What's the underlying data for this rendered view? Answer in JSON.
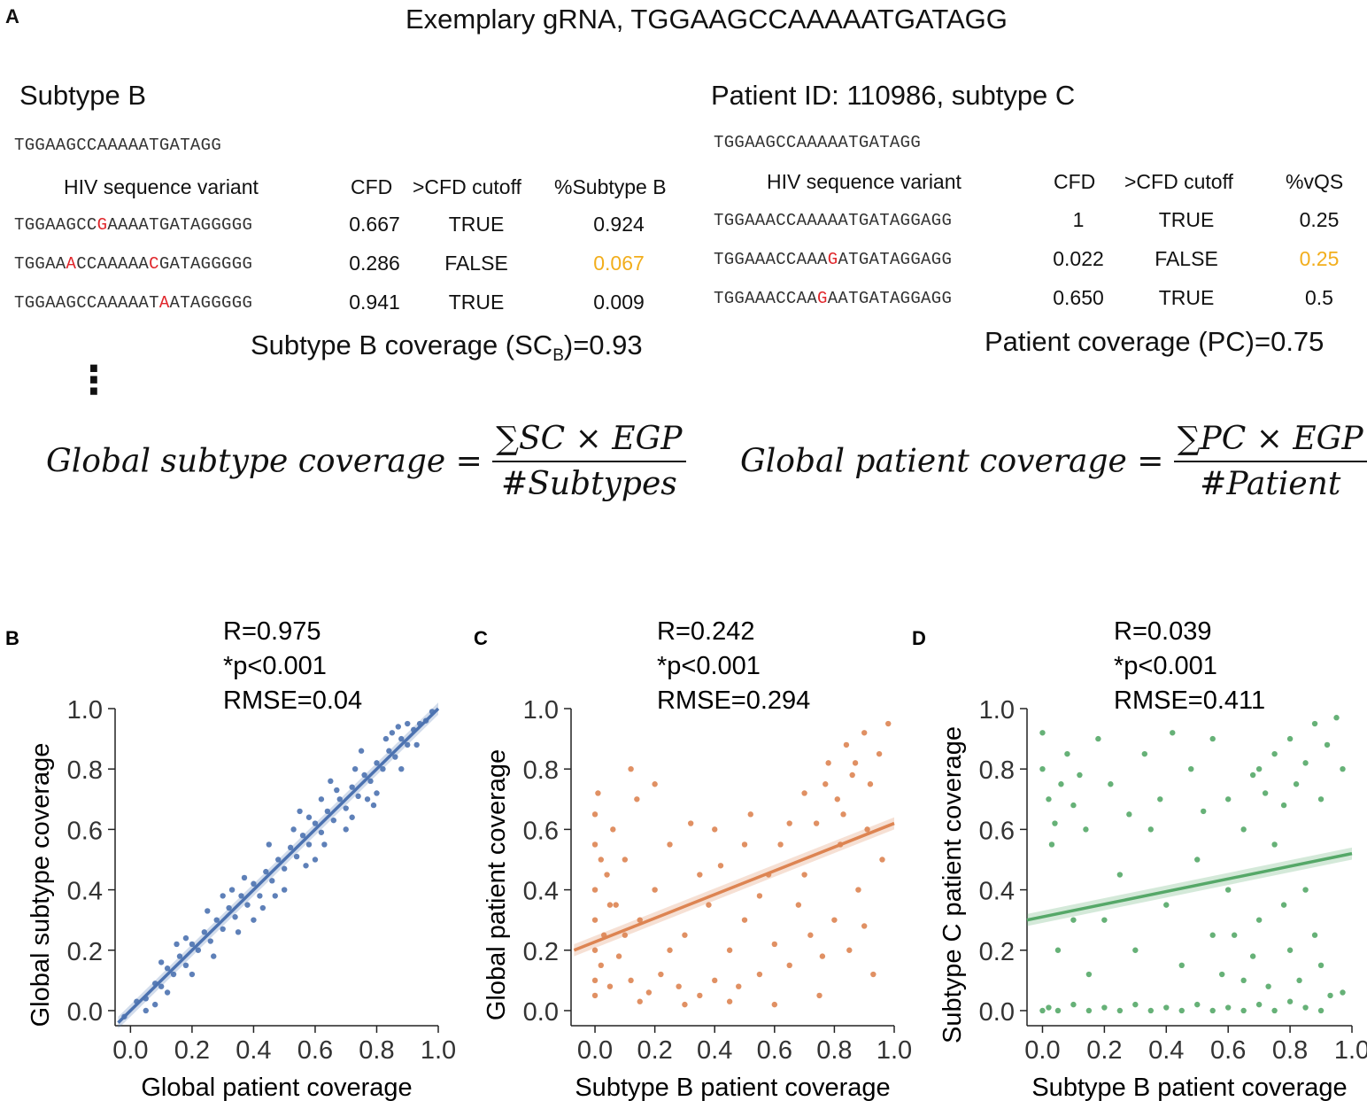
{
  "panelA": {
    "letter": "A",
    "title": "Exemplary gRNA, TGGAAGCCAAAAATGATAGG",
    "subtypeB": {
      "heading": "Subtype B",
      "ref_seq": "TGGAAGCCAAAAATGATAGG",
      "headers": [
        "HIV sequence variant",
        "CFD",
        ">CFD cutoff",
        "%Subtype B"
      ],
      "rows": [
        {
          "seq": [
            "TGGAAGCC",
            "G",
            "AAAATGATAGGGGG"
          ],
          "cfd": "0.667",
          "cutoff": "TRUE",
          "pct": "0.924"
        },
        {
          "seq": [
            "TGGAA",
            "A",
            "CCAAAAA",
            "C",
            "GATAGGGGG"
          ],
          "cfd": "0.286",
          "cutoff": "FALSE",
          "pct": "0.067"
        },
        {
          "seq": [
            "TGGAAGCCAAAAAT",
            "A",
            "ATAGGGGG"
          ],
          "cfd": "0.941",
          "cutoff": "TRUE",
          "pct": "0.009"
        }
      ],
      "coverage_pre": "Subtype B coverage (SC",
      "coverage_sub": "B",
      "coverage_post": ")=0.93"
    },
    "patient": {
      "heading": "Patient ID: 110986, subtype C",
      "ref_seq": "TGGAAGCCAAAAATGATAGG",
      "headers": [
        "HIV sequence variant",
        "CFD",
        ">CFD cutoff",
        "%vQS"
      ],
      "rows": [
        {
          "seq": [
            "TGGAAACCAAAAATGATAGGAGG"
          ],
          "cfd": "1",
          "cutoff": "TRUE",
          "pct": "0.25"
        },
        {
          "seq": [
            "TGGAAACCAAA",
            "G",
            "ATGATAGGAGG"
          ],
          "cfd": "0.022",
          "cutoff": "FALSE",
          "pct": "0.25"
        },
        {
          "seq": [
            "TGGAAACCAA",
            "G",
            "AATGATAGGAGG"
          ],
          "cfd": "0.650",
          "cutoff": "TRUE",
          "pct": "0.5"
        }
      ],
      "coverage": "Patient coverage (PC)=0.75"
    },
    "formula_left": {
      "lhs": "Global subtype coverage =",
      "num": "∑SC × EGP",
      "den": "#Subtypes"
    },
    "formula_right": {
      "lhs": "Global patient coverage =",
      "num": "∑PC × EGP",
      "den": "#Patient"
    },
    "ellipsis": "⋮"
  },
  "colors": {
    "blue": "#4c72b0",
    "orange": "#dd8452",
    "green": "#55a868",
    "mutation": "#e0262b",
    "highlight": "#f2ae1c"
  },
  "chart_data": [
    {
      "panel": "B",
      "type": "scatter",
      "color": "#4c72b0",
      "stats": [
        "R=0.975",
        "*p<0.001",
        "RMSE=0.04"
      ],
      "xlabel": "Global patient coverage",
      "ylabel": "Global subtype coverage",
      "xlim": [
        -0.05,
        1.0
      ],
      "ylim": [
        -0.05,
        1.0
      ],
      "xticks": [
        "0.0",
        "0.2",
        "0.4",
        "0.6",
        "0.8",
        "1.0"
      ],
      "yticks": [
        "0.0",
        "0.2",
        "0.4",
        "0.6",
        "0.8",
        "1.0"
      ],
      "fit": {
        "x": [
          -0.04,
          1.0
        ],
        "y": [
          -0.04,
          1.0
        ]
      },
      "points": [
        [
          -0.02,
          -0.02
        ],
        [
          0.02,
          0.03
        ],
        [
          0.05,
          0.04
        ],
        [
          0.08,
          0.09
        ],
        [
          0.1,
          0.08
        ],
        [
          0.12,
          0.14
        ],
        [
          0.14,
          0.12
        ],
        [
          0.16,
          0.18
        ],
        [
          0.18,
          0.15
        ],
        [
          0.2,
          0.22
        ],
        [
          0.22,
          0.2
        ],
        [
          0.24,
          0.26
        ],
        [
          0.26,
          0.23
        ],
        [
          0.28,
          0.3
        ],
        [
          0.3,
          0.27
        ],
        [
          0.32,
          0.34
        ],
        [
          0.34,
          0.31
        ],
        [
          0.36,
          0.38
        ],
        [
          0.38,
          0.35
        ],
        [
          0.4,
          0.42
        ],
        [
          0.42,
          0.38
        ],
        [
          0.44,
          0.46
        ],
        [
          0.46,
          0.43
        ],
        [
          0.48,
          0.5
        ],
        [
          0.5,
          0.47
        ],
        [
          0.52,
          0.54
        ],
        [
          0.54,
          0.51
        ],
        [
          0.56,
          0.58
        ],
        [
          0.58,
          0.55
        ],
        [
          0.6,
          0.62
        ],
        [
          0.62,
          0.59
        ],
        [
          0.64,
          0.66
        ],
        [
          0.66,
          0.63
        ],
        [
          0.68,
          0.7
        ],
        [
          0.7,
          0.67
        ],
        [
          0.72,
          0.74
        ],
        [
          0.74,
          0.71
        ],
        [
          0.76,
          0.78
        ],
        [
          0.78,
          0.76
        ],
        [
          0.8,
          0.82
        ],
        [
          0.82,
          0.8
        ],
        [
          0.84,
          0.86
        ],
        [
          0.86,
          0.84
        ],
        [
          0.88,
          0.9
        ],
        [
          0.9,
          0.88
        ],
        [
          0.92,
          0.93
        ],
        [
          0.94,
          0.95
        ],
        [
          0.96,
          0.96
        ],
        [
          0.98,
          0.99
        ],
        [
          0.1,
          0.16
        ],
        [
          0.2,
          0.12
        ],
        [
          0.3,
          0.38
        ],
        [
          0.35,
          0.26
        ],
        [
          0.45,
          0.55
        ],
        [
          0.5,
          0.4
        ],
        [
          0.55,
          0.66
        ],
        [
          0.6,
          0.5
        ],
        [
          0.65,
          0.76
        ],
        [
          0.7,
          0.6
        ],
        [
          0.75,
          0.86
        ],
        [
          0.8,
          0.72
        ],
        [
          0.85,
          0.92
        ],
        [
          0.88,
          0.8
        ],
        [
          0.4,
          0.3
        ],
        [
          0.25,
          0.33
        ],
        [
          0.15,
          0.22
        ],
        [
          0.62,
          0.7
        ],
        [
          0.72,
          0.64
        ],
        [
          0.9,
          0.95
        ],
        [
          0.05,
          0.0
        ],
        [
          0.08,
          0.02
        ],
        [
          0.33,
          0.4
        ],
        [
          0.43,
          0.34
        ],
        [
          0.53,
          0.6
        ],
        [
          0.57,
          0.48
        ],
        [
          0.67,
          0.73
        ],
        [
          0.77,
          0.7
        ],
        [
          0.83,
          0.9
        ],
        [
          0.93,
          0.88
        ],
        [
          0.12,
          0.06
        ],
        [
          0.18,
          0.24
        ],
        [
          0.27,
          0.18
        ],
        [
          0.37,
          0.44
        ],
        [
          0.47,
          0.38
        ],
        [
          0.58,
          0.64
        ],
        [
          0.63,
          0.55
        ],
        [
          0.73,
          0.8
        ],
        [
          0.79,
          0.68
        ],
        [
          0.87,
          0.94
        ]
      ]
    },
    {
      "panel": "C",
      "type": "scatter",
      "color": "#dd8452",
      "stats": [
        "R=0.242",
        "*p<0.001",
        "RMSE=0.294"
      ],
      "xlabel": "Subtype B patient coverage",
      "ylabel": "Global patient coverage",
      "xlim": [
        -0.08,
        1.0
      ],
      "ylim": [
        -0.05,
        1.0
      ],
      "xticks": [
        "0.0",
        "0.2",
        "0.4",
        "0.6",
        "0.8",
        "1.0"
      ],
      "yticks": [
        "0.0",
        "0.2",
        "0.4",
        "0.6",
        "0.8",
        "1.0"
      ],
      "fit": {
        "x": [
          -0.07,
          1.0
        ],
        "y": [
          0.2,
          0.62
        ]
      },
      "points": [
        [
          0.0,
          0.05
        ],
        [
          0.0,
          0.1
        ],
        [
          0.0,
          0.2
        ],
        [
          0.0,
          0.3
        ],
        [
          0.0,
          0.4
        ],
        [
          0.0,
          0.55
        ],
        [
          0.0,
          0.65
        ],
        [
          0.01,
          0.72
        ],
        [
          0.02,
          0.15
        ],
        [
          0.03,
          0.25
        ],
        [
          0.04,
          0.45
        ],
        [
          0.05,
          0.08
        ],
        [
          0.06,
          0.6
        ],
        [
          0.07,
          0.35
        ],
        [
          0.08,
          0.18
        ],
        [
          0.1,
          0.5
        ],
        [
          0.12,
          0.1
        ],
        [
          0.14,
          0.7
        ],
        [
          0.15,
          0.3
        ],
        [
          0.18,
          0.06
        ],
        [
          0.2,
          0.4
        ],
        [
          0.22,
          0.12
        ],
        [
          0.25,
          0.55
        ],
        [
          0.28,
          0.08
        ],
        [
          0.3,
          0.25
        ],
        [
          0.32,
          0.62
        ],
        [
          0.35,
          0.05
        ],
        [
          0.38,
          0.35
        ],
        [
          0.4,
          0.1
        ],
        [
          0.42,
          0.48
        ],
        [
          0.45,
          0.2
        ],
        [
          0.48,
          0.08
        ],
        [
          0.5,
          0.3
        ],
        [
          0.52,
          0.65
        ],
        [
          0.55,
          0.12
        ],
        [
          0.58,
          0.45
        ],
        [
          0.6,
          0.22
        ],
        [
          0.62,
          0.55
        ],
        [
          0.65,
          0.15
        ],
        [
          0.68,
          0.35
        ],
        [
          0.7,
          0.72
        ],
        [
          0.72,
          0.25
        ],
        [
          0.74,
          0.62
        ],
        [
          0.76,
          0.18
        ],
        [
          0.78,
          0.82
        ],
        [
          0.8,
          0.3
        ],
        [
          0.81,
          0.7
        ],
        [
          0.82,
          0.55
        ],
        [
          0.84,
          0.88
        ],
        [
          0.85,
          0.2
        ],
        [
          0.86,
          0.78
        ],
        [
          0.88,
          0.4
        ],
        [
          0.9,
          0.92
        ],
        [
          0.91,
          0.6
        ],
        [
          0.93,
          0.12
        ],
        [
          0.95,
          0.85
        ],
        [
          0.96,
          0.5
        ],
        [
          0.98,
          0.95
        ],
        [
          0.6,
          0.02
        ],
        [
          0.3,
          0.02
        ],
        [
          0.15,
          0.03
        ],
        [
          0.45,
          0.03
        ],
        [
          0.75,
          0.05
        ],
        [
          0.9,
          0.28
        ],
        [
          0.7,
          0.45
        ],
        [
          0.55,
          0.38
        ],
        [
          0.25,
          0.2
        ],
        [
          0.1,
          0.25
        ],
        [
          0.05,
          0.35
        ],
        [
          0.02,
          0.5
        ],
        [
          0.35,
          0.45
        ],
        [
          0.65,
          0.62
        ],
        [
          0.77,
          0.75
        ],
        [
          0.83,
          0.65
        ],
        [
          0.87,
          0.82
        ],
        [
          0.92,
          0.75
        ],
        [
          0.5,
          0.55
        ],
        [
          0.4,
          0.6
        ],
        [
          0.2,
          0.75
        ],
        [
          0.12,
          0.8
        ]
      ]
    },
    {
      "panel": "D",
      "type": "scatter",
      "color": "#55a868",
      "stats": [
        "R=0.039",
        "*p<0.001",
        "RMSE=0.411"
      ],
      "xlabel": "Subtype B patient coverage",
      "ylabel": "Subtype C patient coverage",
      "xlim": [
        -0.05,
        1.0
      ],
      "ylim": [
        -0.05,
        1.0
      ],
      "xticks": [
        "0.0",
        "0.2",
        "0.4",
        "0.6",
        "0.8",
        "1.0"
      ],
      "yticks": [
        "0.0",
        "0.2",
        "0.4",
        "0.6",
        "0.8",
        "1.0"
      ],
      "fit": {
        "x": [
          -0.05,
          1.0
        ],
        "y": [
          0.3,
          0.52
        ]
      },
      "points": [
        [
          0.0,
          0.0
        ],
        [
          0.02,
          0.01
        ],
        [
          0.05,
          0.0
        ],
        [
          0.1,
          0.02
        ],
        [
          0.15,
          0.0
        ],
        [
          0.2,
          0.01
        ],
        [
          0.25,
          0.0
        ],
        [
          0.3,
          0.02
        ],
        [
          0.35,
          0.0
        ],
        [
          0.4,
          0.01
        ],
        [
          0.45,
          0.0
        ],
        [
          0.5,
          0.02
        ],
        [
          0.55,
          0.0
        ],
        [
          0.6,
          0.01
        ],
        [
          0.65,
          0.0
        ],
        [
          0.7,
          0.02
        ],
        [
          0.75,
          0.0
        ],
        [
          0.8,
          0.03
        ],
        [
          0.85,
          0.01
        ],
        [
          0.9,
          0.0
        ],
        [
          0.0,
          0.8
        ],
        [
          0.02,
          0.7
        ],
        [
          0.04,
          0.62
        ],
        [
          0.06,
          0.75
        ],
        [
          0.08,
          0.85
        ],
        [
          0.1,
          0.68
        ],
        [
          0.0,
          0.92
        ],
        [
          0.03,
          0.55
        ],
        [
          0.12,
          0.78
        ],
        [
          0.14,
          0.6
        ],
        [
          0.7,
          0.8
        ],
        [
          0.72,
          0.72
        ],
        [
          0.75,
          0.85
        ],
        [
          0.78,
          0.68
        ],
        [
          0.8,
          0.9
        ],
        [
          0.82,
          0.75
        ],
        [
          0.85,
          0.82
        ],
        [
          0.88,
          0.95
        ],
        [
          0.9,
          0.7
        ],
        [
          0.92,
          0.88
        ],
        [
          0.95,
          0.97
        ],
        [
          0.97,
          0.8
        ],
        [
          0.65,
          0.6
        ],
        [
          0.68,
          0.78
        ],
        [
          0.6,
          0.7
        ],
        [
          0.55,
          0.9
        ],
        [
          0.2,
          0.3
        ],
        [
          0.25,
          0.45
        ],
        [
          0.3,
          0.2
        ],
        [
          0.35,
          0.6
        ],
        [
          0.4,
          0.35
        ],
        [
          0.45,
          0.15
        ],
        [
          0.5,
          0.5
        ],
        [
          0.55,
          0.25
        ],
        [
          0.6,
          0.4
        ],
        [
          0.65,
          0.1
        ],
        [
          0.7,
          0.3
        ],
        [
          0.75,
          0.55
        ],
        [
          0.8,
          0.2
        ],
        [
          0.85,
          0.4
        ],
        [
          0.9,
          0.15
        ],
        [
          0.15,
          0.12
        ],
        [
          0.1,
          0.3
        ],
        [
          0.05,
          0.2
        ],
        [
          0.18,
          0.9
        ],
        [
          0.22,
          0.75
        ],
        [
          0.28,
          0.65
        ],
        [
          0.33,
          0.85
        ],
        [
          0.38,
          0.7
        ],
        [
          0.42,
          0.92
        ],
        [
          0.48,
          0.8
        ],
        [
          0.52,
          0.66
        ],
        [
          0.58,
          0.12
        ],
        [
          0.62,
          0.25
        ],
        [
          0.68,
          0.18
        ],
        [
          0.73,
          0.08
        ],
        [
          0.78,
          0.35
        ],
        [
          0.83,
          0.1
        ],
        [
          0.88,
          0.25
        ],
        [
          0.93,
          0.05
        ],
        [
          0.97,
          0.06
        ]
      ]
    }
  ]
}
